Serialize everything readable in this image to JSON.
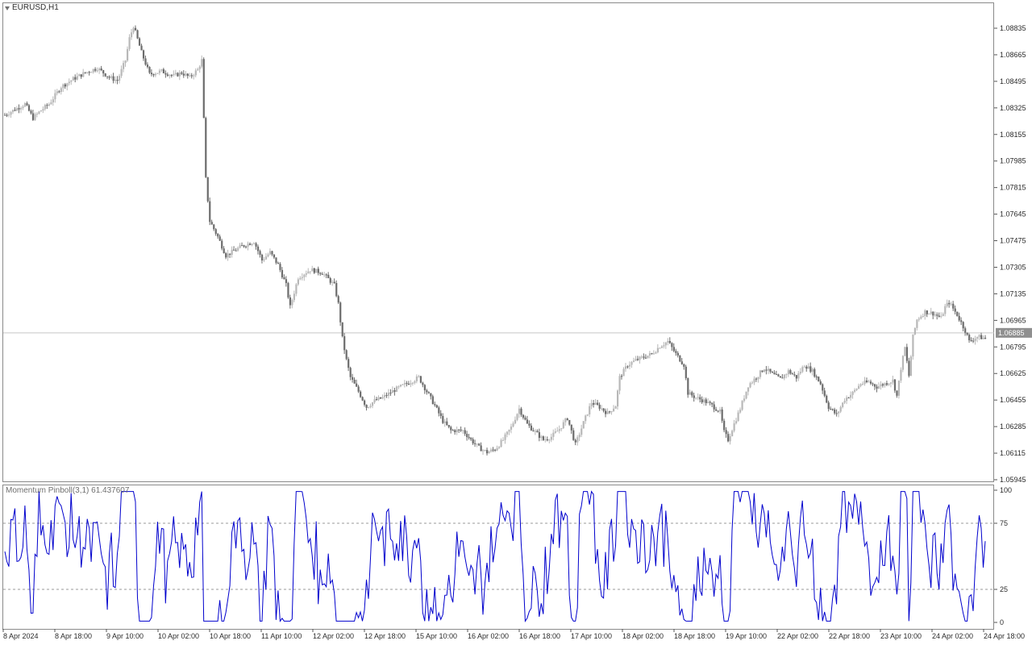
{
  "window": {
    "symbol_label": "EURUSD,H1",
    "indicator_label": "Momentum Pinboll(3,1) 61.437607"
  },
  "colors": {
    "bull_candle": "#b8b8b8",
    "bear_candle": "#6c6c6c",
    "indicator_line": "#0000cd",
    "price_label_bg": "#8f8f8f"
  },
  "chart_data": [
    {
      "type": "candlestick",
      "symbol": "EURUSD",
      "timeframe": "H1",
      "ylim": [
        1.05945,
        1.0892
      ],
      "current_price": 1.06885,
      "current_price_label": "1.06885",
      "y_ticks": [
        "1.08835",
        "1.08665",
        "1.08495",
        "1.08325",
        "1.08155",
        "1.07985",
        "1.07815",
        "1.07645",
        "1.07475",
        "1.07305",
        "1.07135",
        "1.06965",
        "1.06795",
        "1.06625",
        "1.06455",
        "1.06285",
        "1.06115",
        "1.05945"
      ],
      "x_ticks": [
        "8 Apr 2024",
        "8 Apr 18:00",
        "9 Apr 10:00",
        "10 Apr 02:00",
        "10 Apr 18:00",
        "11 Apr 10:00",
        "12 Apr 02:00",
        "12 Apr 18:00",
        "15 Apr 10:00",
        "16 Apr 02:00",
        "16 Apr 18:00",
        "17 Apr 10:00",
        "18 Apr 02:00",
        "18 Apr 18:00",
        "19 Apr 10:00",
        "22 Apr 02:00",
        "22 Apr 18:00",
        "23 Apr 10:00",
        "24 Apr 02:00",
        "24 Apr 18:00"
      ],
      "path_points": [
        [
          0,
          1.0828
        ],
        [
          10,
          1.0835
        ],
        [
          14,
          1.0826
        ],
        [
          18,
          1.0831
        ],
        [
          22,
          1.0835
        ],
        [
          28,
          1.0846
        ],
        [
          34,
          1.0851
        ],
        [
          40,
          1.0855
        ],
        [
          46,
          1.0858
        ],
        [
          52,
          1.0852
        ],
        [
          56,
          1.085
        ],
        [
          60,
          1.0863
        ],
        [
          62,
          1.0877
        ],
        [
          64,
          1.0885
        ],
        [
          68,
          1.0868
        ],
        [
          72,
          1.0854
        ],
        [
          78,
          1.0856
        ],
        [
          84,
          1.0853
        ],
        [
          88,
          1.0855
        ],
        [
          92,
          1.0852
        ],
        [
          96,
          1.0857
        ],
        [
          98,
          1.0863
        ],
        [
          100,
          1.0787
        ],
        [
          102,
          1.076
        ],
        [
          106,
          1.075
        ],
        [
          110,
          1.0738
        ],
        [
          118,
          1.0744
        ],
        [
          124,
          1.0747
        ],
        [
          128,
          1.0735
        ],
        [
          132,
          1.074
        ],
        [
          136,
          1.0732
        ],
        [
          140,
          1.0719
        ],
        [
          142,
          1.0705
        ],
        [
          146,
          1.0724
        ],
        [
          152,
          1.0729
        ],
        [
          158,
          1.0727
        ],
        [
          164,
          1.0719
        ],
        [
          166,
          1.0707
        ],
        [
          168,
          1.0685
        ],
        [
          170,
          1.0671
        ],
        [
          172,
          1.066
        ],
        [
          176,
          1.0651
        ],
        [
          180,
          1.0641
        ],
        [
          184,
          1.0645
        ],
        [
          188,
          1.0647
        ],
        [
          194,
          1.0652
        ],
        [
          200,
          1.0656
        ],
        [
          206,
          1.066
        ],
        [
          210,
          1.0651
        ],
        [
          214,
          1.0642
        ],
        [
          218,
          1.0632
        ],
        [
          222,
          1.0626
        ],
        [
          228,
          1.0626
        ],
        [
          232,
          1.062
        ],
        [
          236,
          1.0615
        ],
        [
          240,
          1.0612
        ],
        [
          244,
          1.0614
        ],
        [
          248,
          1.062
        ],
        [
          252,
          1.0628
        ],
        [
          256,
          1.064
        ],
        [
          260,
          1.063
        ],
        [
          264,
          1.0625
        ],
        [
          268,
          1.062
        ],
        [
          272,
          1.0622
        ],
        [
          276,
          1.0627
        ],
        [
          280,
          1.0634
        ],
        [
          284,
          1.0617
        ],
        [
          288,
          1.0631
        ],
        [
          292,
          1.0644
        ],
        [
          296,
          1.0641
        ],
        [
          300,
          1.0637
        ],
        [
          304,
          1.0642
        ],
        [
          306,
          1.066
        ],
        [
          310,
          1.0668
        ],
        [
          314,
          1.0671
        ],
        [
          318,
          1.0673
        ],
        [
          322,
          1.0675
        ],
        [
          326,
          1.068
        ],
        [
          330,
          1.0683
        ],
        [
          334,
          1.0675
        ],
        [
          338,
          1.0668
        ],
        [
          340,
          1.065
        ],
        [
          344,
          1.0647
        ],
        [
          348,
          1.0645
        ],
        [
          352,
          1.0642
        ],
        [
          356,
          1.0638
        ],
        [
          358,
          1.0625
        ],
        [
          360,
          1.062
        ],
        [
          362,
          1.0627
        ],
        [
          366,
          1.064
        ],
        [
          370,
          1.0655
        ],
        [
          374,
          1.066
        ],
        [
          378,
          1.0666
        ],
        [
          382,
          1.0662
        ],
        [
          386,
          1.0659
        ],
        [
          390,
          1.0664
        ],
        [
          394,
          1.066
        ],
        [
          398,
          1.0668
        ],
        [
          402,
          1.0664
        ],
        [
          406,
          1.0656
        ],
        [
          410,
          1.0641
        ],
        [
          414,
          1.0636
        ],
        [
          418,
          1.0646
        ],
        [
          422,
          1.065
        ],
        [
          426,
          1.0656
        ],
        [
          430,
          1.0657
        ],
        [
          434,
          1.0654
        ],
        [
          438,
          1.0656
        ],
        [
          442,
          1.0658
        ],
        [
          444,
          1.0648
        ],
        [
          446,
          1.0666
        ],
        [
          448,
          1.0679
        ],
        [
          450,
          1.0661
        ],
        [
          452,
          1.0686
        ],
        [
          454,
          1.0697
        ],
        [
          458,
          1.0702
        ],
        [
          462,
          1.0701
        ],
        [
          466,
          1.0698
        ],
        [
          468,
          1.0705
        ],
        [
          470,
          1.0708
        ],
        [
          474,
          1.07
        ],
        [
          478,
          1.069
        ],
        [
          480,
          1.0683
        ],
        [
          484,
          1.0686
        ],
        [
          488,
          1.0685
        ]
      ]
    },
    {
      "type": "line",
      "name": "Momentum Pinboll(3,1)",
      "current_value": 61.437607,
      "ylim": [
        0,
        100
      ],
      "y_ticks": [
        "100",
        "75",
        "25",
        "0"
      ],
      "levels": [
        75,
        25
      ]
    }
  ]
}
